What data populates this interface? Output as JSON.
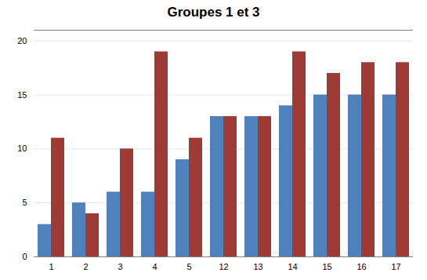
{
  "chart_data": {
    "type": "bar",
    "title": "Groupes 1 et 3",
    "categories": [
      "1",
      "2",
      "3",
      "4",
      "5",
      "12",
      "13",
      "14",
      "15",
      "16",
      "17"
    ],
    "series": [
      {
        "color": "#4F81BD",
        "values": [
          3,
          5,
          6,
          6,
          9,
          13,
          13,
          14,
          15,
          15,
          15
        ]
      },
      {
        "color": "#9E3B35",
        "values": [
          11,
          4,
          10,
          19,
          11,
          13,
          13,
          19,
          17,
          18,
          18
        ]
      }
    ],
    "ylim": [
      0,
      21
    ],
    "yticks": [
      0,
      5,
      10,
      15,
      20
    ],
    "grid": true
  }
}
